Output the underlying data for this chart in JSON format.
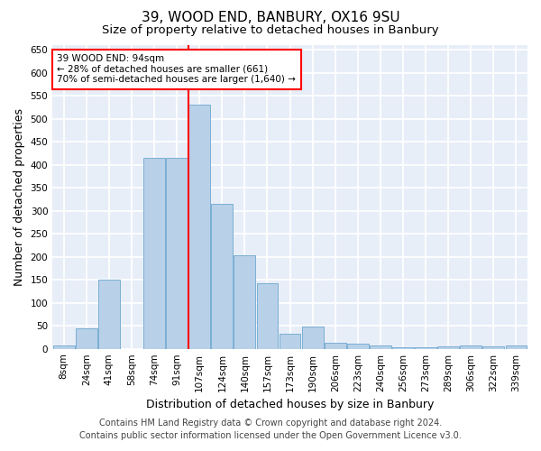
{
  "title": "39, WOOD END, BANBURY, OX16 9SU",
  "subtitle": "Size of property relative to detached houses in Banbury",
  "xlabel": "Distribution of detached houses by size in Banbury",
  "ylabel": "Number of detached properties",
  "categories": [
    "8sqm",
    "24sqm",
    "41sqm",
    "58sqm",
    "74sqm",
    "91sqm",
    "107sqm",
    "124sqm",
    "140sqm",
    "157sqm",
    "173sqm",
    "190sqm",
    "206sqm",
    "223sqm",
    "240sqm",
    "256sqm",
    "273sqm",
    "289sqm",
    "306sqm",
    "322sqm",
    "339sqm"
  ],
  "values": [
    7,
    44,
    150,
    0,
    415,
    415,
    530,
    315,
    203,
    142,
    33,
    48,
    14,
    12,
    8,
    4,
    3,
    5,
    7,
    5,
    7
  ],
  "bar_color": "#b8d0e8",
  "bar_edge_color": "#7aafd4",
  "vline_x_index": 5.5,
  "vline_color": "red",
  "annotation_title": "39 WOOD END: 94sqm",
  "annotation_line1": "← 28% of detached houses are smaller (661)",
  "annotation_line2": "70% of semi-detached houses are larger (1,640) →",
  "annotation_box_color": "white",
  "annotation_box_edge_color": "red",
  "ylim": [
    0,
    660
  ],
  "yticks": [
    0,
    50,
    100,
    150,
    200,
    250,
    300,
    350,
    400,
    450,
    500,
    550,
    600,
    650
  ],
  "footer1": "Contains HM Land Registry data © Crown copyright and database right 2024.",
  "footer2": "Contains public sector information licensed under the Open Government Licence v3.0.",
  "background_color": "#e8eef8",
  "grid_color": "white",
  "title_fontsize": 11,
  "subtitle_fontsize": 9.5,
  "label_fontsize": 9,
  "tick_fontsize": 7.5,
  "footer_fontsize": 7,
  "annotation_fontsize": 7.5
}
